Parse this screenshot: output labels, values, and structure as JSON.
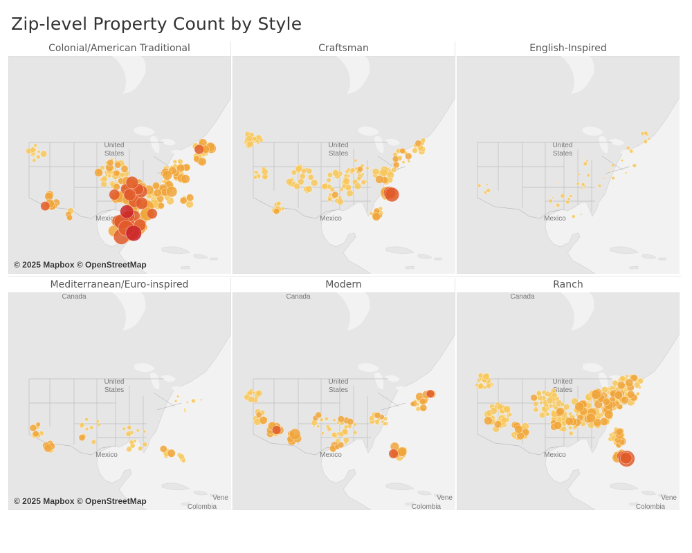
{
  "title": "Zip-level Property Count by Style",
  "attribution": "© 2025 Mapbox © OpenStreetMap",
  "map_labels": {
    "country_us": [
      "United",
      "States"
    ],
    "mexico": "Mexico",
    "canada": "Canada",
    "colombia": "Colombia",
    "venezuela_partial": "Vene"
  },
  "colors": {
    "low": "#f7c75a",
    "mid": "#f0a43a",
    "high": "#e05b2a",
    "max": "#c9252a",
    "land": "#e6e6e6",
    "water": "#f2f2f2",
    "borders": "#bdbdbd"
  },
  "panels": [
    {
      "id": "colonial",
      "label": "Colonial/American Traditional",
      "show_canada": false,
      "show_attribution": true
    },
    {
      "id": "craftsman",
      "label": "Craftsman",
      "show_canada": false,
      "show_attribution": false
    },
    {
      "id": "english",
      "label": "English-Inspired",
      "show_canada": false,
      "show_attribution": false
    },
    {
      "id": "mediterranean",
      "label": "Mediterranean/Euro-inspired",
      "show_canada": true,
      "show_attribution": true
    },
    {
      "id": "modern",
      "label": "Modern",
      "show_canada": true,
      "show_attribution": false
    },
    {
      "id": "ranch",
      "label": "Ranch",
      "show_canada": true,
      "show_attribution": false
    }
  ]
}
